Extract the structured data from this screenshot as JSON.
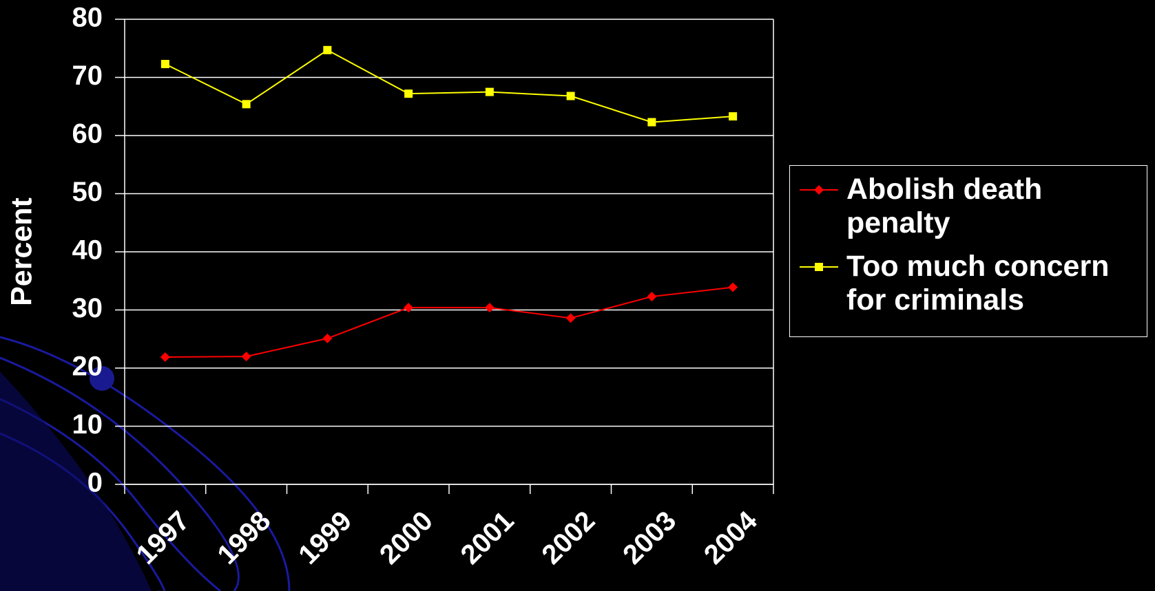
{
  "chart_data": {
    "type": "line",
    "y_label": "Percent",
    "categories": [
      "1997",
      "1998",
      "1999",
      "2000",
      "2001",
      "2002",
      "2003",
      "2004"
    ],
    "series": [
      {
        "name": "Abolish death penalty",
        "color": "#ff0000",
        "marker": "diamond",
        "values": [
          21.9,
          22.0,
          25.1,
          30.4,
          30.4,
          28.6,
          32.3,
          33.9
        ]
      },
      {
        "name": "Too much concern for criminals",
        "color": "#ffff00",
        "marker": "square",
        "values": [
          72.3,
          65.4,
          74.7,
          67.2,
          67.5,
          66.8,
          62.3,
          63.3
        ]
      }
    ],
    "ylim": [
      0,
      80
    ],
    "yticks": [
      0,
      10,
      20,
      30,
      40,
      50,
      60,
      70,
      80
    ],
    "grid": true,
    "legend": "right"
  }
}
